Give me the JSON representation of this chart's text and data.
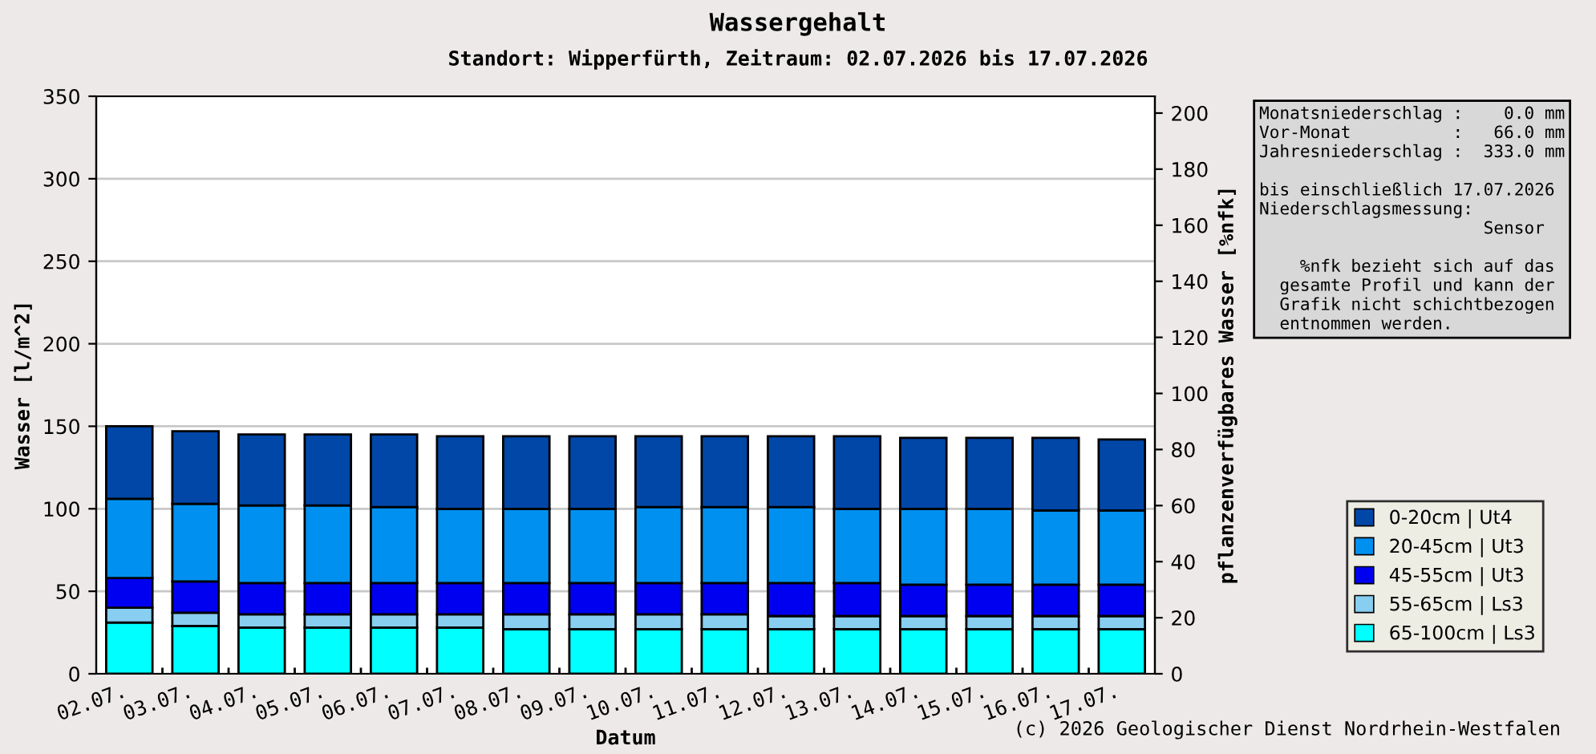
{
  "chart_data": {
    "type": "bar",
    "stacked": true,
    "title": "Wassergehalt",
    "subtitle": "Standort: Wipperfürth, Zeitraum: 02.07.2026 bis 17.07.2026",
    "xlabel": "Datum",
    "ylabel": "Wasser [l/m^2]",
    "y2label": "pflanzenverfügbares Wasser [%nfk]",
    "categories": [
      "02.07.",
      "03.07.",
      "04.07.",
      "05.07.",
      "06.07.",
      "07.07.",
      "08.07.",
      "09.07.",
      "10.07.",
      "11.07.",
      "12.07.",
      "13.07.",
      "14.07.",
      "15.07.",
      "16.07.",
      "17.07."
    ],
    "series": [
      {
        "name": "65-100cm | Ls3",
        "color": "#00ffff",
        "values": [
          31,
          29,
          28,
          28,
          28,
          28,
          27,
          27,
          27,
          27,
          27,
          27,
          27,
          27,
          27,
          27
        ]
      },
      {
        "name": "55-65cm | Ls3",
        "color": "#87cef0",
        "values": [
          9,
          8,
          8,
          8,
          8,
          8,
          9,
          9,
          9,
          9,
          8,
          8,
          8,
          8,
          8,
          8
        ]
      },
      {
        "name": "45-55cm | Ut3",
        "color": "#0000f0",
        "values": [
          18,
          19,
          19,
          19,
          19,
          19,
          19,
          19,
          19,
          19,
          20,
          20,
          19,
          19,
          19,
          19
        ]
      },
      {
        "name": "20-45cm | Ut3",
        "color": "#0090f0",
        "values": [
          48,
          47,
          47,
          47,
          46,
          45,
          45,
          45,
          46,
          46,
          46,
          45,
          46,
          46,
          45,
          45
        ]
      },
      {
        "name": "0-20cm | Ut4",
        "color": "#0047a8",
        "values": [
          44,
          44,
          43,
          43,
          44,
          44,
          44,
          44,
          43,
          43,
          43,
          44,
          43,
          43,
          44,
          43
        ]
      }
    ],
    "ylim": [
      0,
      350
    ],
    "yticks": [
      0,
      50,
      100,
      150,
      200,
      250,
      300,
      350
    ],
    "y2lim": [
      0,
      206
    ],
    "y2ticks": [
      0,
      20,
      40,
      60,
      80,
      100,
      120,
      140,
      160,
      180,
      200
    ],
    "grid": "y",
    "legend": "right",
    "annotations": [
      "Monatsniederschlag :    0.0 mm\nVor-Monat          :   66.0 mm\nJahresniederschlag :  333.0 mm\n\nbis einschließlich 17.07.2026\nNiederschlagsmessung:\n                      Sensor\n\n    %nfk bezieht sich auf das\n  gesamte Profil und kann der\n  Grafik nicht schichtbezogen\n  entnommen werden.",
      "(c) 2026 Geologischer Dienst Nordrhein-Westfalen"
    ]
  }
}
